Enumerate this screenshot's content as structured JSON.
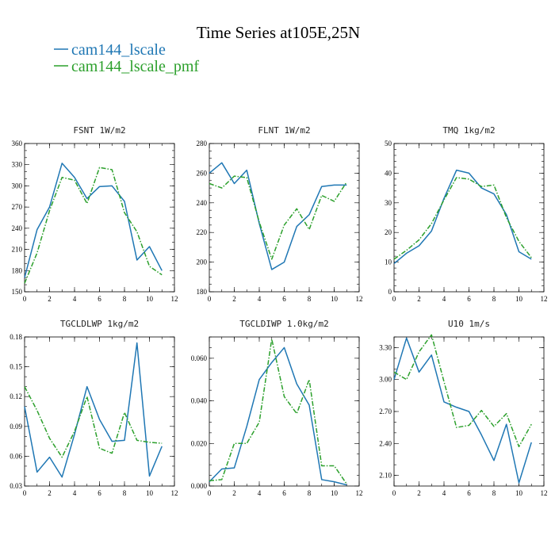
{
  "figure": {
    "title": "Time Series at105E,25N",
    "legend": [
      {
        "label": "cam144_lscale",
        "color": "#1f77b4",
        "dash": "solid"
      },
      {
        "label": "cam144_lscale_pmf",
        "color": "#2ca02c",
        "dash": "dashdot"
      }
    ]
  },
  "chart_data": [
    {
      "type": "line",
      "title": "FSNT  1W/m2",
      "x": [
        0,
        1,
        2,
        3,
        4,
        5,
        6,
        7,
        8,
        9,
        10,
        11
      ],
      "xlim": [
        0,
        12
      ],
      "xticks": [
        0,
        2,
        4,
        6,
        8,
        10,
        12
      ],
      "xtick_labels": [
        "0",
        "2",
        "4",
        "6",
        "8",
        "10",
        "12"
      ],
      "ylim": [
        150,
        360
      ],
      "yticks": [
        150,
        180,
        210,
        240,
        270,
        300,
        330,
        360
      ],
      "ytick_labels": [
        "150",
        "180",
        "210",
        "240",
        "270",
        "300",
        "330",
        "360"
      ],
      "yminor": 10,
      "series": [
        {
          "name": "cam144_lscale",
          "values": [
            170,
            238,
            270,
            332,
            312,
            282,
            299,
            300,
            278,
            195,
            214,
            180
          ]
        },
        {
          "name": "cam144_lscale_pmf",
          "values": [
            162,
            205,
            265,
            312,
            308,
            275,
            326,
            323,
            262,
            235,
            186,
            174
          ]
        }
      ]
    },
    {
      "type": "line",
      "title": "FLNT  1W/m2",
      "x": [
        0,
        1,
        2,
        3,
        4,
        5,
        6,
        7,
        8,
        9,
        10,
        11
      ],
      "xlim": [
        0,
        12
      ],
      "xticks": [
        0,
        2,
        4,
        6,
        8,
        10,
        12
      ],
      "xtick_labels": [
        "0",
        "2",
        "4",
        "6",
        "8",
        "10",
        "12"
      ],
      "ylim": [
        180,
        280
      ],
      "yticks": [
        180,
        200,
        220,
        240,
        260,
        280
      ],
      "ytick_labels": [
        "180",
        "200",
        "220",
        "240",
        "260",
        "280"
      ],
      "yminor": 5,
      "series": [
        {
          "name": "cam144_lscale",
          "values": [
            260,
            267,
            253,
            262,
            226,
            195,
            200,
            224,
            232,
            251,
            252,
            252
          ]
        },
        {
          "name": "cam144_lscale_pmf",
          "values": [
            253,
            250,
            258,
            257,
            227,
            202,
            225,
            236,
            222,
            245,
            241,
            254
          ]
        }
      ]
    },
    {
      "type": "line",
      "title": "TMQ  1kg/m2",
      "x": [
        0,
        1,
        2,
        3,
        4,
        5,
        6,
        7,
        8,
        9,
        10,
        11
      ],
      "xlim": [
        0,
        12
      ],
      "xticks": [
        0,
        2,
        4,
        6,
        8,
        10,
        12
      ],
      "xtick_labels": [
        "0",
        "2",
        "4",
        "6",
        "8",
        "10",
        "12"
      ],
      "ylim": [
        0,
        50
      ],
      "yticks": [
        0,
        10,
        20,
        30,
        40,
        50
      ],
      "ytick_labels": [
        "0",
        "10",
        "20",
        "30",
        "40",
        "50"
      ],
      "yminor": 2,
      "series": [
        {
          "name": "cam144_lscale",
          "values": [
            9.5,
            13,
            15.5,
            20.5,
            31.5,
            41,
            40,
            35,
            33,
            26,
            13.5,
            11
          ]
        },
        {
          "name": "cam144_lscale_pmf",
          "values": [
            11,
            14,
            17.5,
            23,
            31,
            38.5,
            38,
            35.5,
            36,
            25,
            17,
            11.5
          ]
        }
      ]
    },
    {
      "type": "line",
      "title": "TGCLDLWP  1kg/m2",
      "x": [
        0,
        1,
        2,
        3,
        4,
        5,
        6,
        7,
        8,
        9,
        10,
        11
      ],
      "xlim": [
        0,
        12
      ],
      "xticks": [
        0,
        2,
        4,
        6,
        8,
        10,
        12
      ],
      "xtick_labels": [
        "0",
        "2",
        "4",
        "6",
        "8",
        "10",
        "12"
      ],
      "ylim": [
        0.03,
        0.18
      ],
      "yticks": [
        0.03,
        0.06,
        0.09,
        0.12,
        0.15,
        0.18
      ],
      "ytick_labels": [
        "0.03",
        "0.06",
        "0.09",
        "0.12",
        "0.15",
        "0.18"
      ],
      "yminor": 0.01,
      "series": [
        {
          "name": "cam144_lscale",
          "values": [
            0.11,
            0.044,
            0.059,
            0.039,
            0.082,
            0.13,
            0.097,
            0.075,
            0.076,
            0.174,
            0.04,
            0.07
          ]
        },
        {
          "name": "cam144_lscale_pmf",
          "values": [
            0.13,
            0.106,
            0.078,
            0.059,
            0.085,
            0.12,
            0.068,
            0.063,
            0.104,
            0.076,
            0.074,
            0.073
          ]
        }
      ]
    },
    {
      "type": "line",
      "title": "TGCLDIWP  1.0kg/m2",
      "x": [
        0,
        1,
        2,
        3,
        4,
        5,
        6,
        7,
        8,
        9,
        10,
        11
      ],
      "xlim": [
        0,
        12
      ],
      "xticks": [
        0,
        2,
        4,
        6,
        8,
        10,
        12
      ],
      "xtick_labels": [
        "0",
        "2",
        "4",
        "6",
        "8",
        "10",
        "12"
      ],
      "ylim": [
        0,
        0.07
      ],
      "yticks": [
        0,
        0.02,
        0.04,
        0.06
      ],
      "ytick_labels": [
        "0.000",
        "0.020",
        "0.040",
        "0.060"
      ],
      "yminor": 0.005,
      "series": [
        {
          "name": "cam144_lscale",
          "values": [
            0.002,
            0.008,
            0.0085,
            0.028,
            0.05,
            0.058,
            0.065,
            0.048,
            0.038,
            0.003,
            0.002,
            0.0005
          ]
        },
        {
          "name": "cam144_lscale_pmf",
          "values": [
            0.0025,
            0.003,
            0.02,
            0.02,
            0.03,
            0.069,
            0.042,
            0.034,
            0.05,
            0.0095,
            0.0095,
            0.001
          ]
        }
      ]
    },
    {
      "type": "line",
      "title": "U10  1m/s",
      "x": [
        0,
        1,
        2,
        3,
        4,
        5,
        6,
        7,
        8,
        9,
        10,
        11
      ],
      "xlim": [
        0,
        12
      ],
      "xticks": [
        0,
        2,
        4,
        6,
        8,
        10,
        12
      ],
      "xtick_labels": [
        "0",
        "2",
        "4",
        "6",
        "8",
        "10",
        "12"
      ],
      "ylim": [
        2.0,
        3.4
      ],
      "yticks": [
        2.1,
        2.4,
        2.7,
        3.0,
        3.3
      ],
      "ytick_labels": [
        "2.10",
        "2.40",
        "2.70",
        "3.00",
        "3.30"
      ],
      "yminor": 0.1,
      "series": [
        {
          "name": "cam144_lscale",
          "values": [
            3.0,
            3.39,
            3.07,
            3.23,
            2.79,
            2.74,
            2.7,
            2.48,
            2.24,
            2.58,
            2.03,
            2.41
          ]
        },
        {
          "name": "cam144_lscale_pmf",
          "values": [
            3.07,
            3.0,
            3.26,
            3.42,
            2.98,
            2.55,
            2.57,
            2.71,
            2.56,
            2.68,
            2.37,
            2.58
          ]
        }
      ]
    }
  ]
}
